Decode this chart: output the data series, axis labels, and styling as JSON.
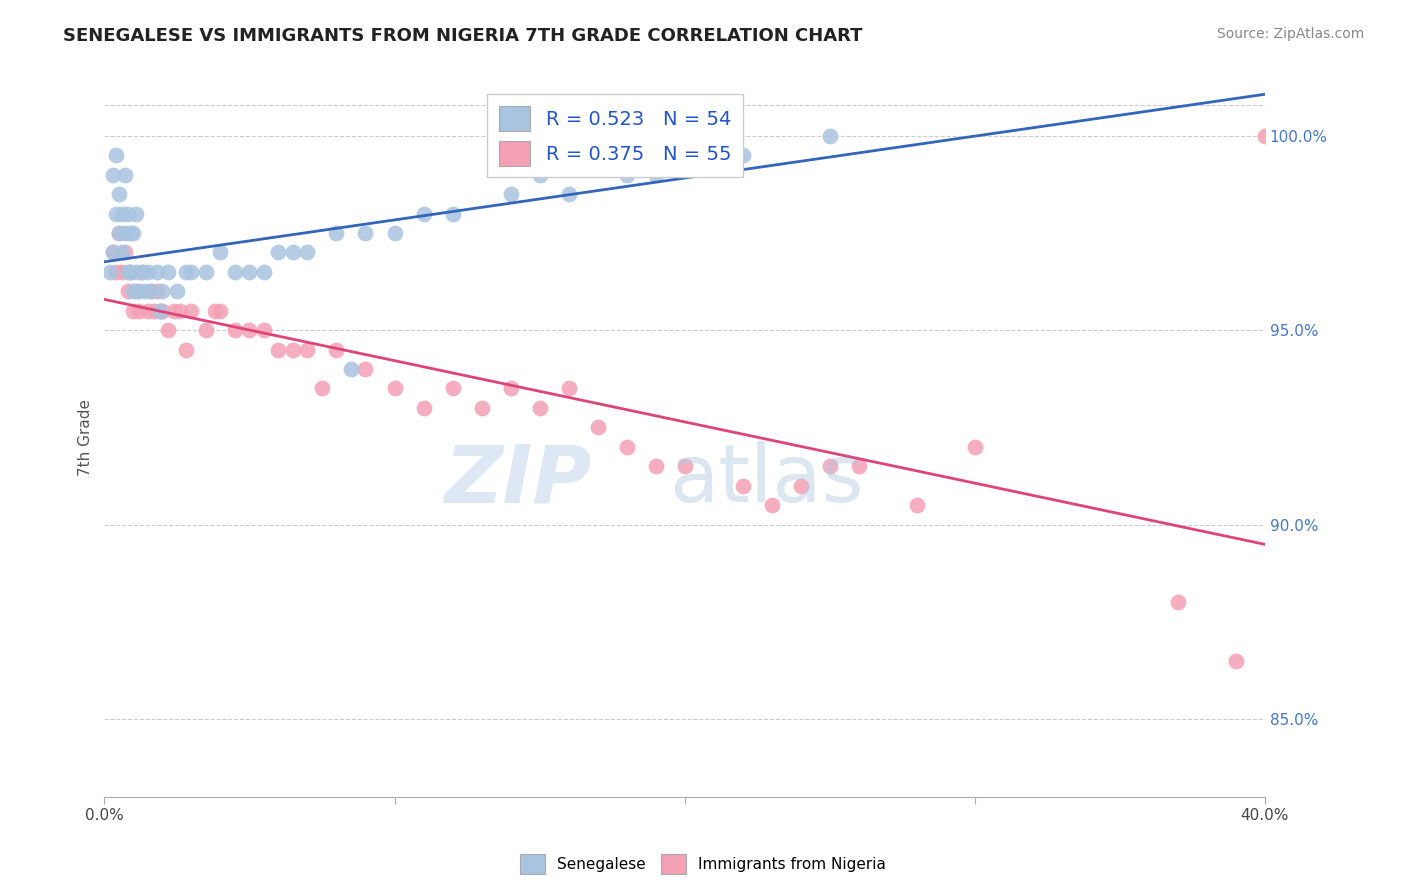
{
  "title": "SENEGALESE VS IMMIGRANTS FROM NIGERIA 7TH GRADE CORRELATION CHART",
  "source": "Source: ZipAtlas.com",
  "ylabel": "7th Grade",
  "legend_label1": "Senegalese",
  "legend_label2": "Immigrants from Nigeria",
  "R1": 0.523,
  "N1": 54,
  "R2": 0.375,
  "N2": 55,
  "color1": "#a8c4e0",
  "color2": "#f4a0b5",
  "line_color1": "#3366bb",
  "line_color2": "#dd4477",
  "x_range": [
    0.0,
    40.0
  ],
  "y_range": [
    83.0,
    101.5
  ],
  "senegalese_x": [
    0.2,
    0.3,
    0.3,
    0.4,
    0.4,
    0.5,
    0.5,
    0.6,
    0.6,
    0.7,
    0.7,
    0.8,
    0.8,
    0.9,
    0.9,
    1.0,
    1.0,
    1.1,
    1.1,
    1.2,
    1.3,
    1.4,
    1.5,
    1.6,
    1.8,
    1.9,
    2.0,
    2.2,
    2.5,
    2.8,
    3.0,
    3.5,
    4.0,
    4.5,
    5.0,
    5.5,
    6.0,
    6.5,
    7.0,
    8.0,
    8.5,
    9.0,
    10.0,
    11.0,
    12.0,
    14.0,
    15.0,
    16.0,
    17.0,
    18.0,
    19.0,
    20.0,
    22.0,
    25.0
  ],
  "senegalese_y": [
    96.5,
    97.0,
    99.0,
    98.0,
    99.5,
    97.5,
    98.5,
    97.0,
    98.0,
    97.5,
    99.0,
    96.5,
    98.0,
    96.5,
    97.5,
    96.0,
    97.5,
    96.5,
    98.0,
    96.0,
    96.5,
    96.0,
    96.5,
    96.0,
    96.5,
    95.5,
    96.0,
    96.5,
    96.0,
    96.5,
    96.5,
    96.5,
    97.0,
    96.5,
    96.5,
    96.5,
    97.0,
    97.0,
    97.0,
    97.5,
    94.0,
    97.5,
    97.5,
    98.0,
    98.0,
    98.5,
    99.0,
    98.5,
    99.5,
    99.0,
    99.0,
    99.5,
    99.5,
    100.0
  ],
  "nigeria_x": [
    0.3,
    0.4,
    0.5,
    0.6,
    0.7,
    0.8,
    0.9,
    1.0,
    1.1,
    1.2,
    1.3,
    1.5,
    1.6,
    1.7,
    1.8,
    1.9,
    2.0,
    2.2,
    2.4,
    2.6,
    2.8,
    3.0,
    3.5,
    3.8,
    4.0,
    4.5,
    5.0,
    5.5,
    6.0,
    6.5,
    7.0,
    7.5,
    8.0,
    9.0,
    10.0,
    11.0,
    12.0,
    13.0,
    14.0,
    15.0,
    16.0,
    17.0,
    18.0,
    19.0,
    20.0,
    22.0,
    23.0,
    24.0,
    25.0,
    26.0,
    28.0,
    30.0,
    37.0,
    39.0,
    40.0
  ],
  "nigeria_y": [
    97.0,
    96.5,
    97.5,
    96.5,
    97.0,
    96.0,
    96.5,
    95.5,
    96.0,
    95.5,
    96.5,
    95.5,
    96.0,
    95.5,
    96.0,
    95.5,
    95.5,
    95.0,
    95.5,
    95.5,
    94.5,
    95.5,
    95.0,
    95.5,
    95.5,
    95.0,
    95.0,
    95.0,
    94.5,
    94.5,
    94.5,
    93.5,
    94.5,
    94.0,
    93.5,
    93.0,
    93.5,
    93.0,
    93.5,
    93.0,
    93.5,
    92.5,
    92.0,
    91.5,
    91.5,
    91.0,
    90.5,
    91.0,
    91.5,
    91.5,
    90.5,
    92.0,
    88.0,
    86.5,
    100.0
  ]
}
